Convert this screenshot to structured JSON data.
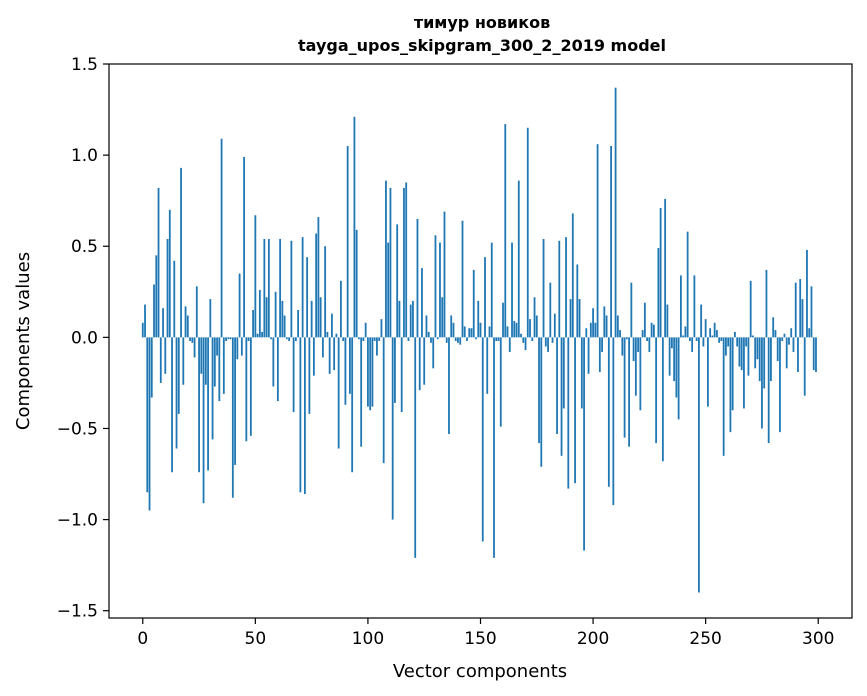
{
  "chart_data": {
    "type": "bar",
    "title": "тимур новиков",
    "subtitle": "tayga_upos_skipgram_300_2_2019 model",
    "xlabel": "Vector components",
    "ylabel": "Components values",
    "xlim": [
      -15,
      315
    ],
    "ylim": [
      -1.54,
      1.5
    ],
    "xticks": [
      0,
      50,
      100,
      150,
      200,
      250,
      300
    ],
    "yticks": [
      -1.5,
      -1.0,
      -0.5,
      0.0,
      0.5,
      1.0,
      1.5
    ],
    "xtick_labels": [
      "0",
      "50",
      "100",
      "150",
      "200",
      "250",
      "300"
    ],
    "ytick_labels": [
      "−1.5",
      "−1.0",
      "−0.5",
      "0.0",
      "0.5",
      "1.0",
      "1.5"
    ],
    "bar_color": "#1f77b4",
    "values": [
      0.08,
      0.18,
      -0.85,
      -0.95,
      -0.33,
      0.29,
      0.45,
      0.82,
      -0.25,
      0.16,
      -0.2,
      0.54,
      0.7,
      -0.74,
      0.42,
      -0.61,
      -0.42,
      0.93,
      -0.26,
      0.17,
      0.12,
      -0.02,
      -0.03,
      -0.11,
      0.28,
      -0.74,
      -0.2,
      -0.91,
      -0.26,
      -0.73,
      0.21,
      -0.56,
      -0.27,
      -0.1,
      -0.35,
      1.09,
      -0.31,
      -0.02,
      -0.01,
      -0.01,
      -0.88,
      -0.7,
      -0.12,
      0.35,
      -0.1,
      0.99,
      -0.57,
      -0.02,
      -0.54,
      0.15,
      0.67,
      0.02,
      0.26,
      0.03,
      0.54,
      0.22,
      0.54,
      -0.01,
      -0.27,
      0.25,
      -0.35,
      0.54,
      0.2,
      0.12,
      -0.01,
      -0.02,
      0.53,
      -0.41,
      -0.02,
      0.15,
      -0.85,
      0.55,
      -0.86,
      0.44,
      -0.42,
      0.2,
      -0.21,
      0.57,
      0.66,
      0.22,
      -0.11,
      0.5,
      0.03,
      -0.2,
      0.13,
      -0.18,
      0.02,
      -0.61,
      0.31,
      -0.02,
      -0.37,
      1.05,
      -0.31,
      -0.74,
      1.21,
      0.59,
      -0.01,
      -0.6,
      -0.02,
      0.08,
      -0.38,
      -0.4,
      -0.38,
      -0.02,
      -0.1,
      -0.02,
      0.1,
      -0.69,
      0.86,
      0.52,
      0.82,
      -1.0,
      -0.36,
      0.62,
      0.2,
      -0.41,
      0.82,
      0.85,
      -0.02,
      0.18,
      0.2,
      -1.21,
      0.65,
      -0.29,
      0.38,
      -0.26,
      0.12,
      0.03,
      -0.03,
      -0.17,
      0.56,
      -0.01,
      0.52,
      0.22,
      0.69,
      -0.03,
      -0.53,
      0.12,
      0.08,
      -0.02,
      -0.03,
      -0.04,
      0.64,
      0.06,
      -0.02,
      0.05,
      0.05,
      0.37,
      -0.01,
      0.2,
      0.08,
      -1.12,
      0.44,
      -0.31,
      0.06,
      0.52,
      -1.21,
      -0.02,
      -0.02,
      -0.49,
      0.19,
      1.17,
      0.06,
      -0.08,
      0.52,
      0.09,
      0.08,
      0.86,
      0.02,
      -0.03,
      -0.07,
      1.15,
      0.1,
      -0.02,
      0.22,
      0.12,
      -0.58,
      -0.71,
      0.54,
      -0.05,
      -0.08,
      0.3,
      -0.03,
      0.13,
      -0.53,
      0.53,
      -0.65,
      -0.39,
      0.55,
      -0.83,
      0.21,
      0.68,
      -0.8,
      0.4,
      0.21,
      -0.39,
      -1.17,
      0.05,
      -0.2,
      0.08,
      0.16,
      0.08,
      1.06,
      -0.19,
      -0.08,
      0.17,
      0.12,
      -0.82,
      1.05,
      -0.92,
      1.37,
      0.12,
      0.04,
      -0.1,
      -0.55,
      -0.01,
      -0.6,
      0.3,
      -0.13,
      -0.32,
      -0.08,
      -0.4,
      0.04,
      0.19,
      -0.02,
      -0.08,
      0.08,
      0.07,
      -0.58,
      0.49,
      0.71,
      -0.68,
      0.76,
      0.18,
      -0.21,
      -0.06,
      -0.24,
      -0.33,
      -0.45,
      0.34,
      0.01,
      0.06,
      0.58,
      -0.02,
      -0.08,
      0.34,
      -0.02,
      -1.4,
      0.18,
      -0.05,
      0.1,
      -0.38,
      0.05,
      0.01,
      0.08,
      0.04,
      -0.03,
      -0.02,
      -0.65,
      -0.1,
      -0.05,
      -0.52,
      -0.4,
      0.03,
      -0.05,
      -0.16,
      -0.18,
      -0.39,
      -0.05,
      -0.21,
      0.31,
      0.01,
      -0.17,
      -0.12,
      -0.24,
      -0.5,
      -0.28,
      0.37,
      -0.58,
      -0.24,
      0.11,
      0.04,
      -0.13,
      -0.52,
      -0.02,
      0.02,
      -0.17,
      -0.04,
      0.05,
      -0.08,
      0.3,
      -0.19,
      0.32,
      0.21,
      -0.32,
      0.48,
      0.05,
      0.28,
      -0.18,
      -0.19
    ]
  }
}
